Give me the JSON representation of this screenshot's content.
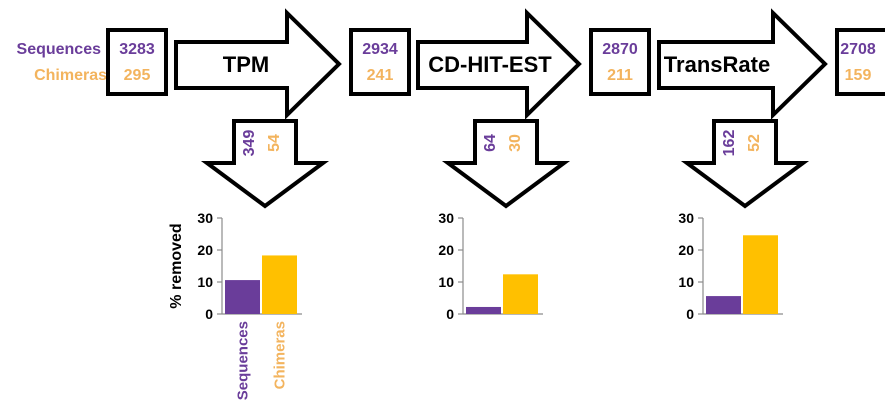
{
  "colors": {
    "sequences": "#6a3d9a",
    "chimeras": "#f3b45e",
    "seq_bar": "#6a3d9a",
    "chim_bar": "#ffc000",
    "stroke": "#000000"
  },
  "legend": {
    "sequences_label": "Sequences",
    "chimeras_label": "Chimeras"
  },
  "pipeline": {
    "counts": [
      {
        "sequences": "3283",
        "chimeras": "295"
      },
      {
        "sequences": "2934",
        "chimeras": "241"
      },
      {
        "sequences": "2870",
        "chimeras": "211"
      },
      {
        "sequences": "2708",
        "chimeras": "159"
      }
    ],
    "steps": [
      {
        "label": "TPM",
        "removed_sequences": "349",
        "removed_chimeras": "54"
      },
      {
        "label": "CD-HIT-EST",
        "removed_sequences": "64",
        "removed_chimeras": "30"
      },
      {
        "label": "TransRate",
        "removed_sequences": "162",
        "removed_chimeras": "52"
      }
    ]
  },
  "chart_data": [
    {
      "type": "bar",
      "categories": [
        "Sequences",
        "Chimeras"
      ],
      "values": [
        10.6,
        18.3
      ],
      "ylabel": "% removed",
      "ylim": [
        0,
        30
      ],
      "yticks": [
        "0",
        "10",
        "20",
        "30"
      ]
    },
    {
      "type": "bar",
      "categories": [
        "Sequences",
        "Chimeras"
      ],
      "values": [
        2.2,
        12.4
      ],
      "ylabel": "",
      "ylim": [
        0,
        30
      ],
      "yticks": [
        "0",
        "10",
        "20",
        "30"
      ]
    },
    {
      "type": "bar",
      "categories": [
        "Sequences",
        "Chimeras"
      ],
      "values": [
        5.6,
        24.6
      ],
      "ylabel": "",
      "ylim": [
        0,
        30
      ],
      "yticks": [
        "0",
        "10",
        "20",
        "30"
      ]
    }
  ]
}
